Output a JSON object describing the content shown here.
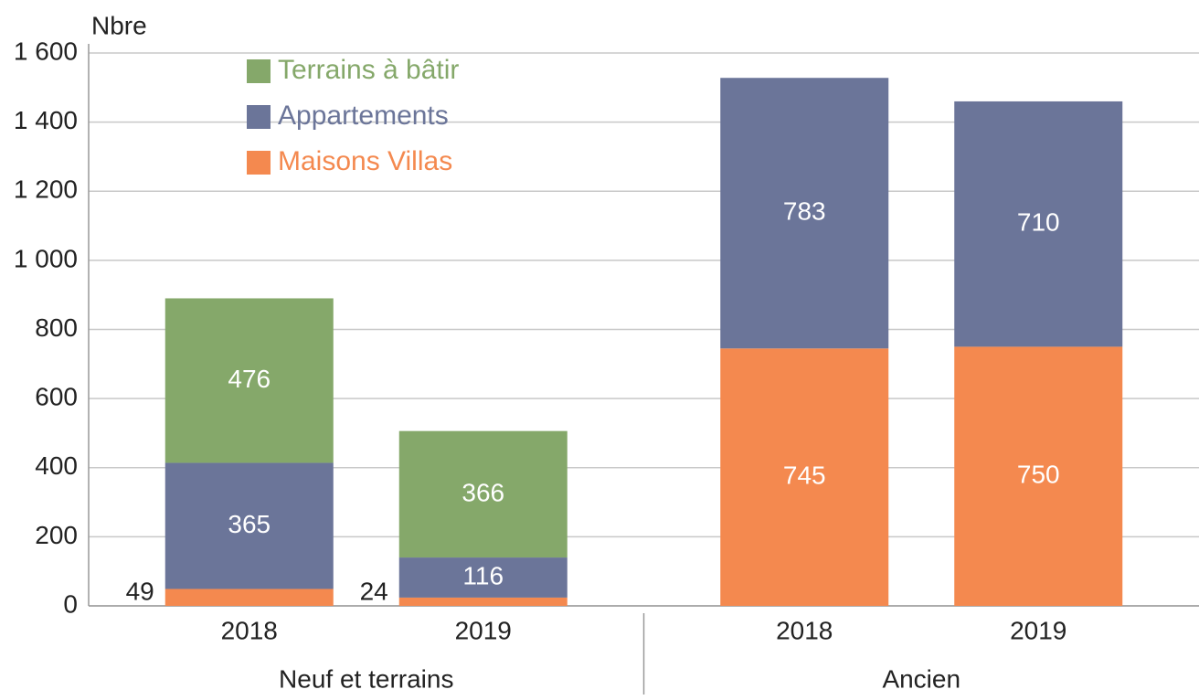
{
  "chart_data": {
    "type": "stacked-bar",
    "y_label": "Nbre",
    "categories": [
      "2018",
      "2019",
      "2018",
      "2019"
    ],
    "category_groups": [
      "Neuf et terrains",
      "Neuf et terrains",
      "Ancien",
      "Ancien"
    ],
    "series": [
      {
        "name": "Maisons Villas",
        "color": "#f4894f",
        "values": [
          49,
          24,
          745,
          750
        ]
      },
      {
        "name": "Appartements",
        "color": "#6b7599",
        "values": [
          365,
          116,
          783,
          710
        ]
      },
      {
        "name": "Terrains à bâtir",
        "color": "#85a86a",
        "values": [
          476,
          366,
          null,
          null
        ]
      }
    ],
    "ylim": [
      0,
      1600
    ],
    "yticks": [
      0,
      200,
      400,
      600,
      800,
      {
        "value": 1000,
        "label": "1 000"
      },
      {
        "value": 1200,
        "label": "1 200"
      },
      {
        "value": 1400,
        "label": "1 400"
      },
      {
        "value": 1600,
        "label": "1 600"
      }
    ],
    "grid": true,
    "legend": "top-left"
  }
}
